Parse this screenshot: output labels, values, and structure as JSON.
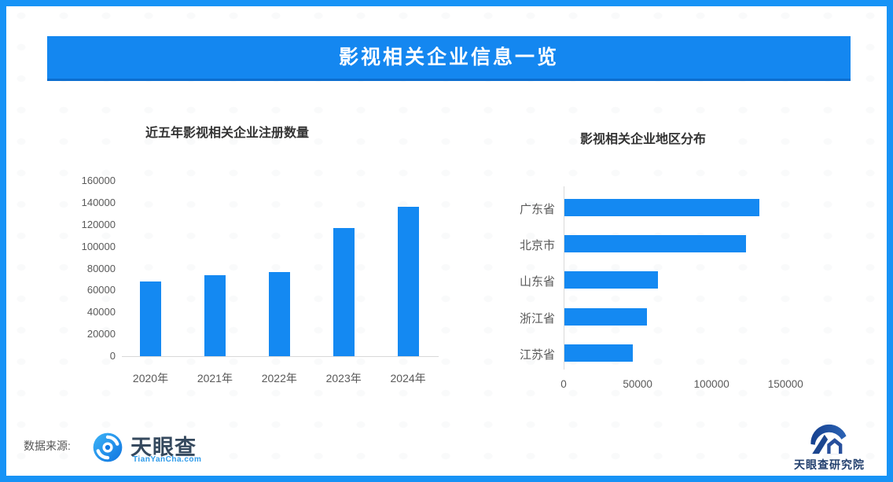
{
  "banner": {
    "title": "影视相关企业信息一览"
  },
  "chart_data": [
    {
      "type": "bar",
      "orientation": "vertical",
      "title": "近五年影视相关企业注册数量",
      "categories": [
        "2020年",
        "2021年",
        "2022年",
        "2023年",
        "2024年"
      ],
      "values": [
        68000,
        74000,
        76500,
        117000,
        136000
      ],
      "xlabel": "",
      "ylabel": "",
      "ylim": [
        0,
        160000
      ],
      "ytick_step": 20000,
      "grid": false,
      "legend": "none",
      "bar_color": "#1489f2"
    },
    {
      "type": "bar",
      "orientation": "horizontal",
      "title": "影视相关企业地区分布",
      "categories": [
        "广东省",
        "北京市",
        "山东省",
        "浙江省",
        "江苏省"
      ],
      "values": [
        132000,
        123000,
        63000,
        56000,
        46000
      ],
      "xlabel": "",
      "ylabel": "",
      "xlim": [
        0,
        175000
      ],
      "xticks": [
        0,
        50000,
        100000,
        150000
      ],
      "grid": false,
      "legend": "none",
      "bar_color": "#1489f2"
    }
  ],
  "footer": {
    "source_label": "数据来源:",
    "tianyancha_name": "天眼查",
    "tianyancha_domain": "TianYanCha.com",
    "institute_name": "天眼查研究院"
  },
  "colors": {
    "accent_blue": "#1489f2",
    "banner_blue": "#1487f0",
    "border_blue": "#1793f6",
    "axis_text": "#595959",
    "title_text": "#333333"
  }
}
